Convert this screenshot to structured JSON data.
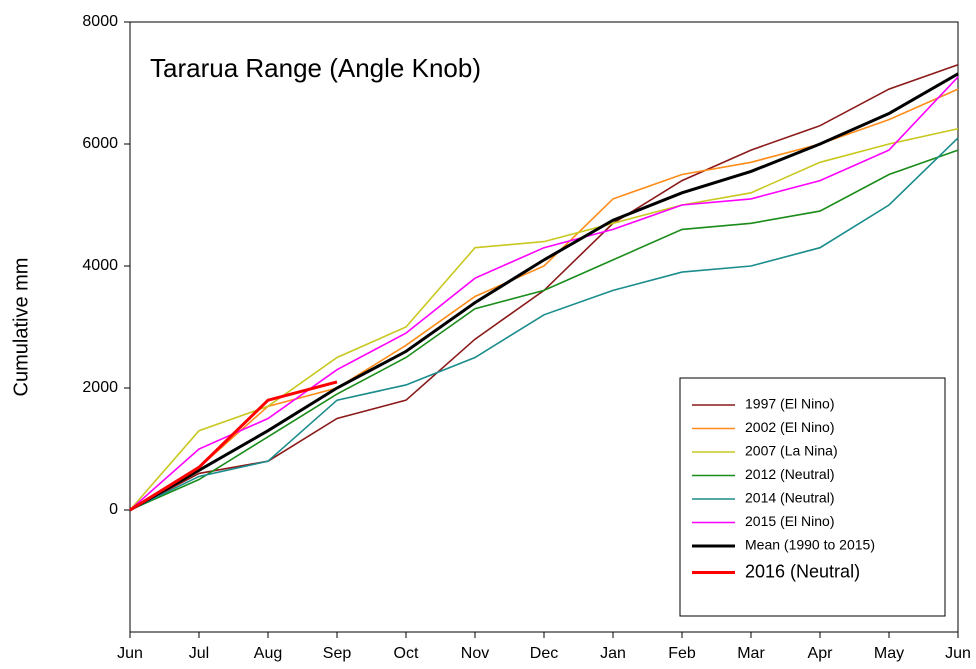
{
  "chart_data": {
    "type": "line",
    "title": "Tararua Range (Angle Knob)",
    "y_label": "Cumulative mm",
    "categories": [
      "Jun",
      "Jul",
      "Aug",
      "Sep",
      "Oct",
      "Nov",
      "Dec",
      "Jan",
      "Feb",
      "Mar",
      "Apr",
      "May",
      "Jun"
    ],
    "ylim": [
      -2000,
      8000
    ],
    "yticks": [
      0,
      2000,
      4000,
      6000,
      8000
    ],
    "legend": "lower right",
    "series": [
      {
        "name": "1997 (El Nino)",
        "color": "#8b1a1a",
        "values": [
          0,
          600,
          800,
          1500,
          1800,
          2800,
          3600,
          4700,
          5400,
          5900,
          6300,
          6900,
          7300
        ]
      },
      {
        "name": "2002 (El Nino)",
        "color": "#ff8c1a",
        "values": [
          0,
          700,
          1700,
          2000,
          2700,
          3500,
          4000,
          5100,
          5500,
          5700,
          6000,
          6400,
          6900
        ]
      },
      {
        "name": "2007 (La Nina)",
        "color": "#c8c820",
        "values": [
          0,
          1300,
          1700,
          2500,
          3000,
          4300,
          4400,
          4700,
          5000,
          5200,
          5700,
          6000,
          6250
        ]
      },
      {
        "name": "2012 (Neutral)",
        "color": "#1a8c1a",
        "values": [
          0,
          500,
          1200,
          1900,
          2500,
          3300,
          3600,
          4100,
          4600,
          4700,
          4900,
          5500,
          5900
        ]
      },
      {
        "name": "2014 (Neutral)",
        "color": "#1a8c8c",
        "values": [
          0,
          550,
          800,
          1800,
          2050,
          2500,
          3200,
          3600,
          3900,
          4000,
          4300,
          5000,
          6100
        ]
      },
      {
        "name": "2015 (El Nino)",
        "color": "#ff00ff",
        "values": [
          0,
          1000,
          1500,
          2300,
          2900,
          3800,
          4300,
          4600,
          5000,
          5100,
          5400,
          5900,
          7100
        ]
      },
      {
        "name": "Mean (1990 to 2015)",
        "color": "#000000",
        "values": [
          0,
          650,
          1300,
          2000,
          2600,
          3400,
          4100,
          4750,
          5200,
          5550,
          6000,
          6500,
          7150
        ]
      },
      {
        "name": "2016 (Neutral)",
        "color": "#ff0000",
        "values": [
          0,
          700,
          1800,
          2100,
          null,
          null,
          null,
          null,
          null,
          null,
          null,
          null,
          null
        ]
      }
    ]
  }
}
